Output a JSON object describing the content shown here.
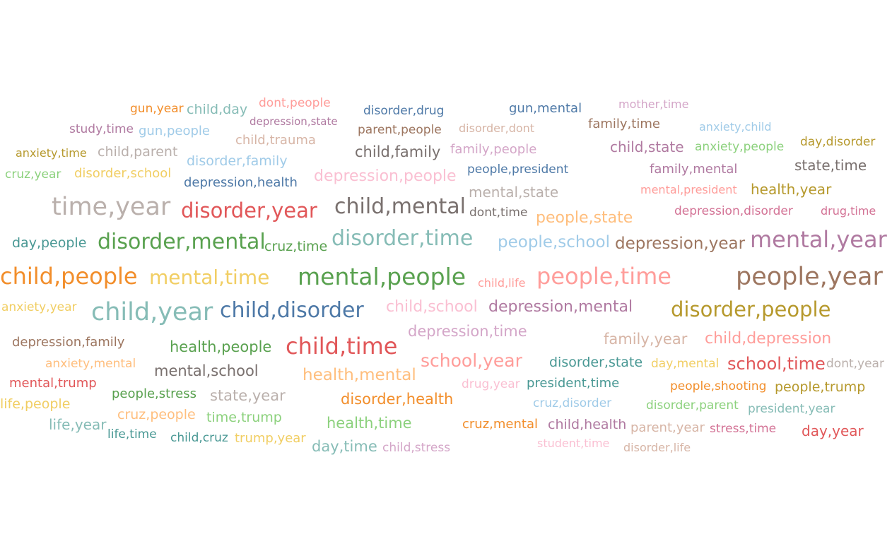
{
  "palette": {
    "blue": "#4e79a7",
    "lightblue": "#a0cbe8",
    "orange": "#f28e2b",
    "lightorange": "#ffbe7d",
    "green": "#59a14f",
    "lightgreen": "#8cd17d",
    "gold": "#b6992d",
    "yellow": "#f1ce63",
    "teal": "#499894",
    "lightteal": "#86bcb6",
    "red": "#e15759",
    "salmon": "#ff9d9a",
    "gray": "#79706e",
    "lightgray": "#bab0ac",
    "pink": "#d37295",
    "lightpink": "#fabfd2",
    "purple": "#b07aa1",
    "lilac": "#d4a6c8",
    "brown": "#9d7660",
    "tan": "#d7b5a6"
  },
  "words": [
    {
      "text": "gun,year",
      "color": "orange"
    },
    {
      "text": "child,day",
      "color": "lightteal"
    },
    {
      "text": "dont,people",
      "color": "salmon"
    },
    {
      "text": "disorder,drug",
      "color": "blue"
    },
    {
      "text": "gun,mental",
      "color": "blue"
    },
    {
      "text": "mother,time",
      "color": "lilac"
    },
    {
      "text": "study,time",
      "color": "purple"
    },
    {
      "text": "gun,people",
      "color": "lightblue"
    },
    {
      "text": "depression,state",
      "color": "purple"
    },
    {
      "text": "child,trauma",
      "color": "tan"
    },
    {
      "text": "parent,people",
      "color": "brown"
    },
    {
      "text": "disorder,dont",
      "color": "tan"
    },
    {
      "text": "family,time",
      "color": "brown"
    },
    {
      "text": "anxiety,child",
      "color": "lightblue"
    },
    {
      "text": "anxiety,time",
      "color": "gold"
    },
    {
      "text": "child,parent",
      "color": "lightgray"
    },
    {
      "text": "child,family",
      "color": "gray"
    },
    {
      "text": "family,people",
      "color": "lilac"
    },
    {
      "text": "child,state",
      "color": "purple"
    },
    {
      "text": "anxiety,people",
      "color": "lightgreen"
    },
    {
      "text": "day,disorder",
      "color": "gold"
    },
    {
      "text": "disorder,family",
      "color": "lightblue"
    },
    {
      "text": "people,president",
      "color": "blue"
    },
    {
      "text": "family,mental",
      "color": "purple"
    },
    {
      "text": "state,time",
      "color": "gray"
    },
    {
      "text": "cruz,year",
      "color": "lightgreen"
    },
    {
      "text": "disorder,school",
      "color": "yellow"
    },
    {
      "text": "depression,health",
      "color": "blue"
    },
    {
      "text": "depression,people",
      "color": "lightpink"
    },
    {
      "text": "mental,state",
      "color": "lightgray"
    },
    {
      "text": "mental,president",
      "color": "salmon"
    },
    {
      "text": "health,year",
      "color": "gold"
    },
    {
      "text": "time,year",
      "color": "lightgray"
    },
    {
      "text": "disorder,year",
      "color": "red"
    },
    {
      "text": "child,mental",
      "color": "gray"
    },
    {
      "text": "dont,time",
      "color": "gray"
    },
    {
      "text": "people,state",
      "color": "lightorange"
    },
    {
      "text": "depression,disorder",
      "color": "pink"
    },
    {
      "text": "drug,time",
      "color": "pink"
    },
    {
      "text": "day,people",
      "color": "teal"
    },
    {
      "text": "disorder,mental",
      "color": "green"
    },
    {
      "text": "cruz,time",
      "color": "green"
    },
    {
      "text": "disorder,time",
      "color": "lightteal"
    },
    {
      "text": "people,school",
      "color": "lightblue"
    },
    {
      "text": "depression,year",
      "color": "brown"
    },
    {
      "text": "mental,year",
      "color": "purple"
    },
    {
      "text": "child,people",
      "color": "orange"
    },
    {
      "text": "mental,time",
      "color": "yellow"
    },
    {
      "text": "mental,people",
      "color": "green"
    },
    {
      "text": "child,life",
      "color": "salmon"
    },
    {
      "text": "people,time",
      "color": "salmon"
    },
    {
      "text": "people,year",
      "color": "brown"
    },
    {
      "text": "anxiety,year",
      "color": "yellow"
    },
    {
      "text": "child,year",
      "color": "lightteal"
    },
    {
      "text": "child,disorder",
      "color": "blue"
    },
    {
      "text": "child,school",
      "color": "lightpink"
    },
    {
      "text": "depression,mental",
      "color": "purple"
    },
    {
      "text": "disorder,people",
      "color": "gold"
    },
    {
      "text": "depression,time",
      "color": "lilac"
    },
    {
      "text": "depression,family",
      "color": "brown"
    },
    {
      "text": "health,people",
      "color": "green"
    },
    {
      "text": "child,time",
      "color": "red"
    },
    {
      "text": "family,year",
      "color": "tan"
    },
    {
      "text": "child,depression",
      "color": "salmon"
    },
    {
      "text": "anxiety,mental",
      "color": "lightorange"
    },
    {
      "text": "mental,school",
      "color": "gray"
    },
    {
      "text": "health,mental",
      "color": "lightorange"
    },
    {
      "text": "school,year",
      "color": "salmon"
    },
    {
      "text": "disorder,state",
      "color": "teal"
    },
    {
      "text": "day,mental",
      "color": "yellow"
    },
    {
      "text": "school,time",
      "color": "red"
    },
    {
      "text": "dont,year",
      "color": "lightgray"
    },
    {
      "text": "mental,trump",
      "color": "red"
    },
    {
      "text": "people,stress",
      "color": "green"
    },
    {
      "text": "state,year",
      "color": "lightgray"
    },
    {
      "text": "drug,year",
      "color": "lightpink"
    },
    {
      "text": "president,time",
      "color": "teal"
    },
    {
      "text": "people,shooting",
      "color": "orange"
    },
    {
      "text": "people,trump",
      "color": "gold"
    },
    {
      "text": "life,people",
      "color": "yellow"
    },
    {
      "text": "cruz,people",
      "color": "lightorange"
    },
    {
      "text": "disorder,health",
      "color": "orange"
    },
    {
      "text": "cruz,disorder",
      "color": "lightblue"
    },
    {
      "text": "disorder,parent",
      "color": "lightgreen"
    },
    {
      "text": "president,year",
      "color": "lightteal"
    },
    {
      "text": "time,trump",
      "color": "lightgreen"
    },
    {
      "text": "life,year",
      "color": "lightteal"
    },
    {
      "text": "health,time",
      "color": "lightgreen"
    },
    {
      "text": "cruz,mental",
      "color": "orange"
    },
    {
      "text": "child,health",
      "color": "purple"
    },
    {
      "text": "parent,year",
      "color": "tan"
    },
    {
      "text": "stress,time",
      "color": "pink"
    },
    {
      "text": "day,year",
      "color": "red"
    },
    {
      "text": "life,time",
      "color": "teal"
    },
    {
      "text": "child,cruz",
      "color": "teal"
    },
    {
      "text": "trump,year",
      "color": "yellow"
    },
    {
      "text": "day,time",
      "color": "lightteal"
    },
    {
      "text": "child,stress",
      "color": "lilac"
    },
    {
      "text": "student,time",
      "color": "lightpink"
    },
    {
      "text": "disorder,life",
      "color": "tan"
    }
  ]
}
